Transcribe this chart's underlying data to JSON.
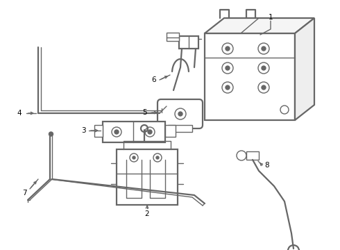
{
  "bg_color": "#ffffff",
  "line_color": "#666666",
  "lw": 1.0,
  "lw2": 1.6,
  "label_fs": 7.5,
  "figsize": [
    4.9,
    3.6
  ],
  "dpi": 100
}
